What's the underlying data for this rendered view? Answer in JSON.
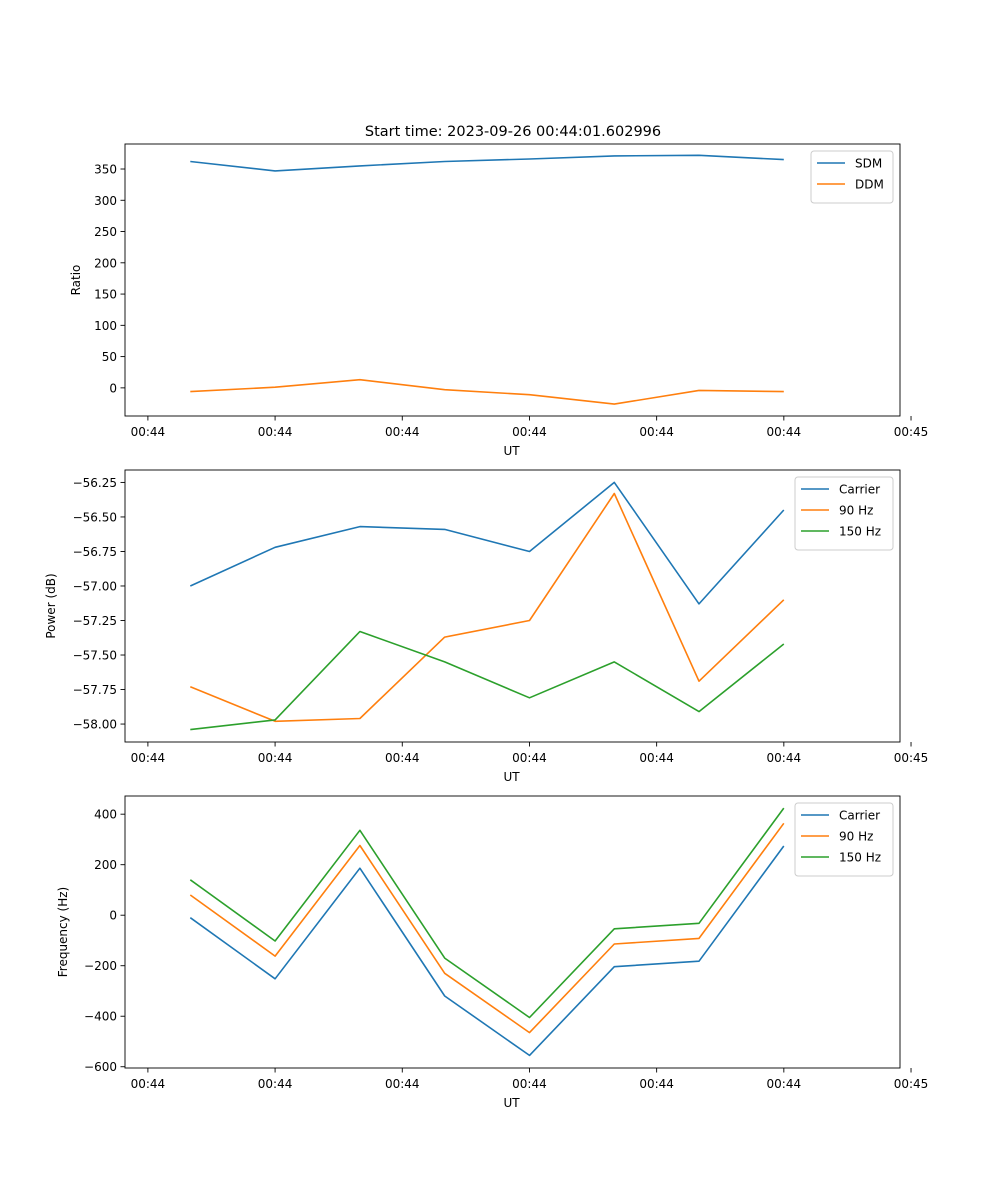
{
  "figure": {
    "title": "Start time: 2023-09-26 00:44:01.602996"
  },
  "colors": {
    "blue": "#1f77b4",
    "orange": "#ff7f0e",
    "green": "#2ca02c"
  },
  "chart_data": [
    {
      "type": "line",
      "xlabel": "UT",
      "ylabel": "Ratio",
      "x": [
        1,
        2,
        3,
        4,
        5,
        6,
        7,
        8
      ],
      "xlim": [
        0.23,
        9.37
      ],
      "xticks": [
        0.5,
        2,
        3.5,
        5,
        6.5,
        8,
        9.5
      ],
      "xtick_labels": [
        "00:44",
        "00:44",
        "00:44",
        "00:44",
        "00:44",
        "00:44",
        "00:45"
      ],
      "ylim": [
        -45,
        390
      ],
      "yticks": [
        0,
        50,
        100,
        150,
        200,
        250,
        300,
        350
      ],
      "ytick_labels": [
        "0",
        "50",
        "100",
        "150",
        "200",
        "250",
        "300",
        "350"
      ],
      "legend": "top-right",
      "series": [
        {
          "name": "SDM",
          "color": "blue",
          "values": [
            362,
            347,
            355,
            362,
            366,
            371,
            372,
            365
          ]
        },
        {
          "name": "DDM",
          "color": "orange",
          "values": [
            -6,
            1,
            13,
            -3,
            -11,
            -26,
            -4,
            -6
          ]
        }
      ]
    },
    {
      "type": "line",
      "xlabel": "UT",
      "ylabel": "Power (dB)",
      "x": [
        1,
        2,
        3,
        4,
        5,
        6,
        7,
        8
      ],
      "xlim": [
        0.23,
        9.37
      ],
      "xticks": [
        0.5,
        2,
        3.5,
        5,
        6.5,
        8,
        9.5
      ],
      "xtick_labels": [
        "00:44",
        "00:44",
        "00:44",
        "00:44",
        "00:44",
        "00:44",
        "00:45"
      ],
      "ylim": [
        -58.13,
        -56.16
      ],
      "yticks": [
        -58.0,
        -57.75,
        -57.5,
        -57.25,
        -57.0,
        -56.75,
        -56.5,
        -56.25
      ],
      "ytick_labels": [
        "−58.00",
        "−57.75",
        "−57.50",
        "−57.25",
        "−57.00",
        "−56.75",
        "−56.50",
        "−56.25"
      ],
      "legend": "top-right",
      "series": [
        {
          "name": "Carrier",
          "color": "blue",
          "values": [
            -57.0,
            -56.72,
            -56.57,
            -56.59,
            -56.75,
            -56.25,
            -57.13,
            -56.45
          ]
        },
        {
          "name": "90 Hz",
          "color": "orange",
          "values": [
            -57.73,
            -57.98,
            -57.96,
            -57.37,
            -57.25,
            -56.33,
            -57.69,
            -57.1
          ]
        },
        {
          "name": "150 Hz",
          "color": "green",
          "values": [
            -58.04,
            -57.97,
            -57.33,
            -57.55,
            -57.81,
            -57.55,
            -57.91,
            -57.42
          ]
        }
      ]
    },
    {
      "type": "line",
      "xlabel": "UT",
      "ylabel": "Frequency (Hz)",
      "x": [
        1,
        2,
        3,
        4,
        5,
        6,
        7,
        8
      ],
      "xlim": [
        0.23,
        9.37
      ],
      "xticks": [
        0.5,
        2,
        3.5,
        5,
        6.5,
        8,
        9.5
      ],
      "xtick_labels": [
        "00:44",
        "00:44",
        "00:44",
        "00:44",
        "00:44",
        "00:44",
        "00:45"
      ],
      "ylim": [
        -605,
        472
      ],
      "yticks": [
        -600,
        -400,
        -200,
        0,
        200,
        400
      ],
      "ytick_labels": [
        "−600",
        "−400",
        "−200",
        "0",
        "200",
        "400"
      ],
      "legend": "top-right",
      "series": [
        {
          "name": "Carrier",
          "color": "blue",
          "values": [
            -10,
            -252,
            186,
            -320,
            -555,
            -204,
            -182,
            274
          ]
        },
        {
          "name": "90 Hz",
          "color": "orange",
          "values": [
            80,
            -162,
            276,
            -230,
            -465,
            -114,
            -92,
            364
          ]
        },
        {
          "name": "150 Hz",
          "color": "green",
          "values": [
            140,
            -102,
            336,
            -170,
            -405,
            -54,
            -32,
            424
          ]
        }
      ]
    }
  ]
}
